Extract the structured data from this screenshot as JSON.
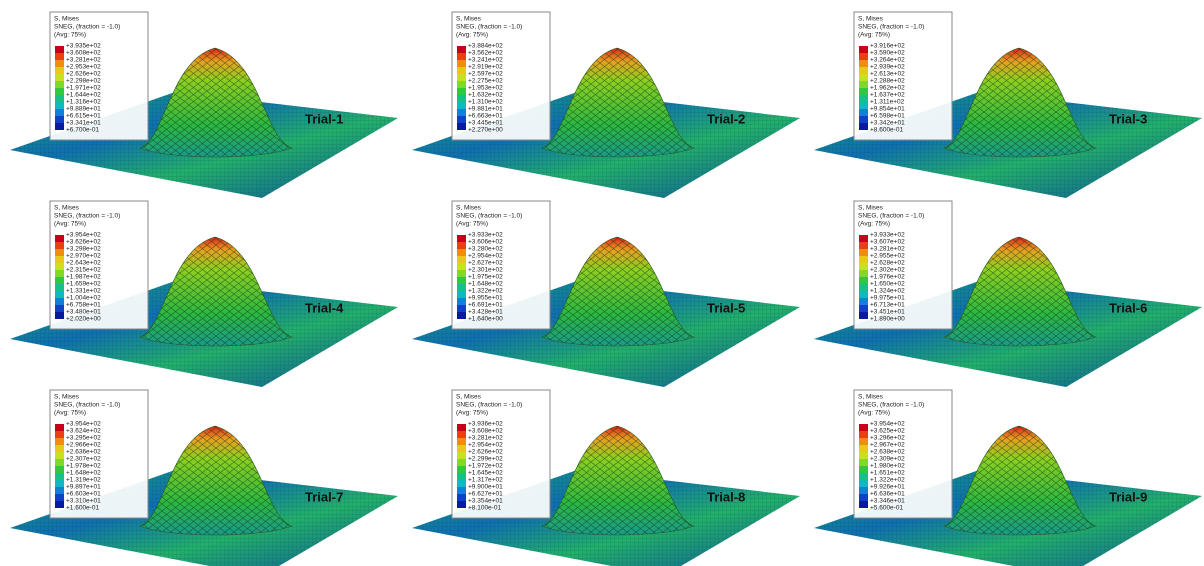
{
  "panels": [
    {
      "label": "Trial-1",
      "legend": {
        "title": [
          "S, Mises",
          "SNEG, (fraction = -1.0)",
          "(Avg: 75%)"
        ],
        "values": [
          "+3.935e+02",
          "+3.608e+02",
          "+3.281e+02",
          "+2.953e+02",
          "+2.626e+02",
          "+2.298e+02",
          "+1.971e+02",
          "+1.644e+02",
          "+1.316e+02",
          "+9.889e+01",
          "+6.615e+01",
          "+3.341e+01",
          "+6.700e-01"
        ]
      }
    },
    {
      "label": "Trial-2",
      "legend": {
        "title": [
          "S, Mises",
          "SNEG, (fraction = -1.0)",
          "(Avg: 75%)"
        ],
        "values": [
          "+3.884e+02",
          "+3.562e+02",
          "+3.241e+02",
          "+2.919e+02",
          "+2.597e+02",
          "+2.275e+02",
          "+1.953e+02",
          "+1.632e+02",
          "+1.310e+02",
          "+9.881e+01",
          "+6.663e+01",
          "+3.445e+01",
          "+2.270e+00"
        ]
      }
    },
    {
      "label": "Trial-3",
      "legend": {
        "title": [
          "S, Mises",
          "SNEG, (fraction = -1.0)",
          "(Avg: 75%)"
        ],
        "values": [
          "+3.916e+02",
          "+3.590e+02",
          "+3.264e+02",
          "+2.939e+02",
          "+2.613e+02",
          "+2.288e+02",
          "+1.962e+02",
          "+1.637e+02",
          "+1.311e+02",
          "+9.854e+01",
          "+6.598e+01",
          "+3.342e+01",
          "+8.600e-01"
        ]
      }
    },
    {
      "label": "Trial-4",
      "legend": {
        "title": [
          "S, Mises",
          "SNEG, (fraction = -1.0)",
          "(Avg: 75%)"
        ],
        "values": [
          "+3.954e+02",
          "+3.626e+02",
          "+3.298e+02",
          "+2.970e+02",
          "+2.643e+02",
          "+2.315e+02",
          "+1.987e+02",
          "+1.659e+02",
          "+1.331e+02",
          "+1.004e+02",
          "+6.758e+01",
          "+3.480e+01",
          "+2.020e+00"
        ]
      }
    },
    {
      "label": "Trial-5",
      "legend": {
        "title": [
          "S, Mises",
          "SNEG, (fraction = -1.0)",
          "(Avg: 75%)"
        ],
        "values": [
          "+3.933e+02",
          "+3.606e+02",
          "+3.280e+02",
          "+2.954e+02",
          "+2.627e+02",
          "+2.301e+02",
          "+1.975e+02",
          "+1.648e+02",
          "+1.322e+02",
          "+9.955e+01",
          "+6.691e+01",
          "+3.428e+01",
          "+1.640e+00"
        ]
      }
    },
    {
      "label": "Trial-6",
      "legend": {
        "title": [
          "S, Mises",
          "SNEG, (fraction = -1.0)",
          "(Avg: 75%)"
        ],
        "values": [
          "+3.933e+02",
          "+3.607e+02",
          "+3.281e+02",
          "+2.955e+02",
          "+2.628e+02",
          "+2.302e+02",
          "+1.976e+02",
          "+1.650e+02",
          "+1.324e+02",
          "+9.975e+01",
          "+6.713e+01",
          "+3.451e+01",
          "+1.890e+00"
        ]
      }
    },
    {
      "label": "Trial-7",
      "legend": {
        "title": [
          "S, Mises",
          "SNEG, (fraction = -1.0)",
          "(Avg: 75%)"
        ],
        "values": [
          "+3.954e+02",
          "+3.624e+02",
          "+3.295e+02",
          "+2.966e+02",
          "+2.636e+02",
          "+2.307e+02",
          "+1.978e+02",
          "+1.648e+02",
          "+1.319e+02",
          "+9.897e+01",
          "+6.603e+01",
          "+3.310e+01",
          "+1.600e-01"
        ]
      }
    },
    {
      "label": "Trial-8",
      "legend": {
        "title": [
          "S, Mises",
          "SNEG, (fraction = -1.0)",
          "(Avg: 75%)"
        ],
        "values": [
          "+3.936e+02",
          "+3.608e+02",
          "+3.281e+02",
          "+2.954e+02",
          "+2.626e+02",
          "+2.299e+02",
          "+1.972e+02",
          "+1.645e+02",
          "+1.317e+02",
          "+9.900e+01",
          "+6.627e+01",
          "+3.354e+01",
          "+8.100e-01"
        ]
      }
    },
    {
      "label": "Trial-9",
      "legend": {
        "title": [
          "S, Mises",
          "SNEG, (fraction = -1.0)",
          "(Avg: 75%)"
        ],
        "values": [
          "+3.954e+02",
          "+3.625e+02",
          "+3.296e+02",
          "+2.967e+02",
          "+2.638e+02",
          "+2.309e+02",
          "+1.980e+02",
          "+1.651e+02",
          "+1.322e+02",
          "+9.926e+01",
          "+6.636e+01",
          "+3.346e+01",
          "+5.600e-01"
        ]
      }
    }
  ]
}
